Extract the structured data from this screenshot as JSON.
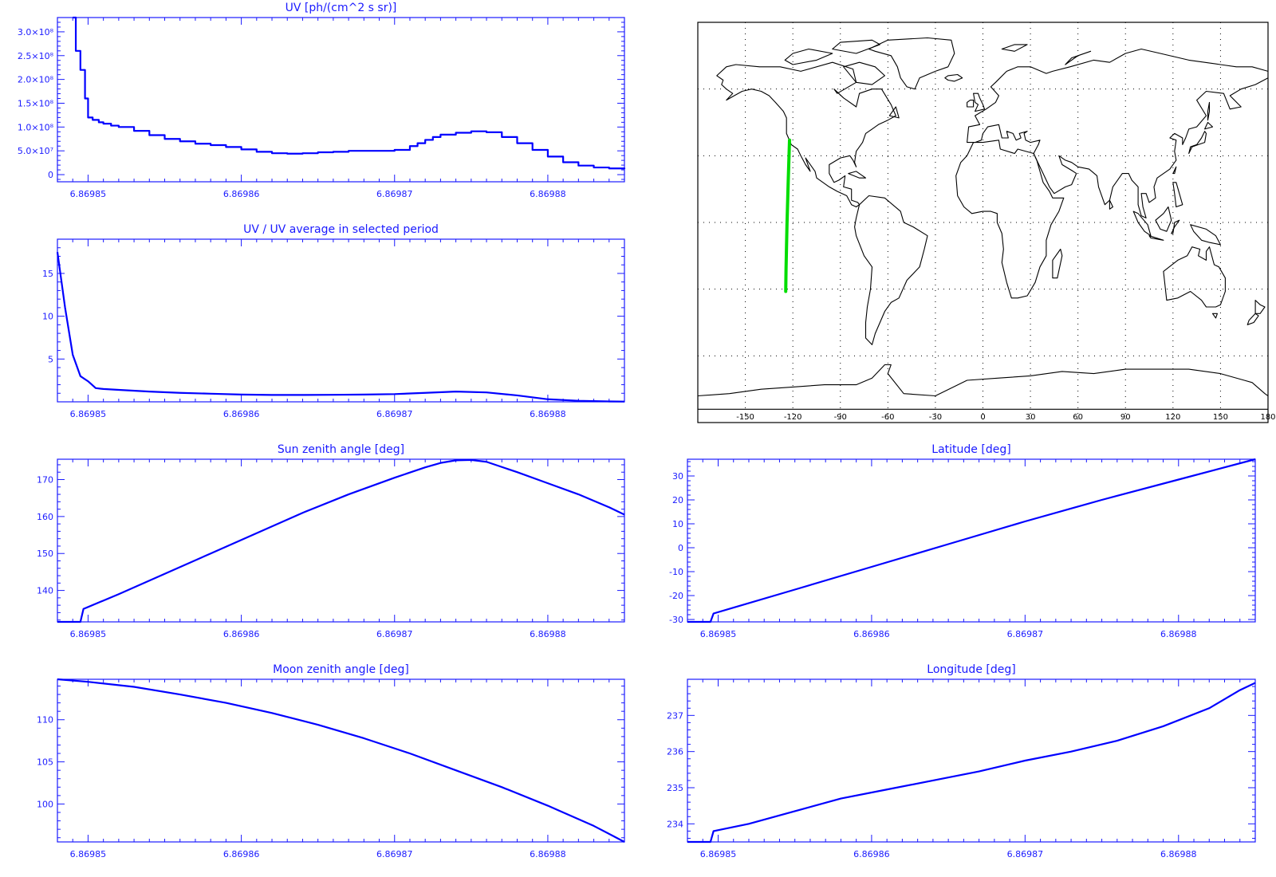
{
  "colors": {
    "axes": "#1a1aff",
    "line": "#0000ff",
    "track": "#00dd00",
    "coast": "#000000",
    "grid": "#000000"
  },
  "chart_data": [
    {
      "id": "uv",
      "type": "line",
      "title": "UV [ph/(cm^2 s sr)]",
      "xlim": [
        6.869848,
        6.869885
      ],
      "ylim": [
        -15000000.0,
        330000000.0
      ],
      "x_ticks": [
        6.86985,
        6.86986,
        6.86987,
        6.86988
      ],
      "x_tick_labels": [
        "6.86985",
        "6.86986",
        "6.86987",
        "6.86988"
      ],
      "y_ticks": [
        0,
        50000000.0,
        100000000.0,
        150000000.0,
        200000000.0,
        250000000.0,
        300000000.0
      ],
      "y_tick_labels": [
        "0",
        "5.0×10⁷",
        "1.0×10⁸",
        "1.5×10⁸",
        "2.0×10⁸",
        "2.5×10⁸",
        "3.0×10⁸"
      ],
      "step": true,
      "x": [
        6.869849,
        6.8698492,
        6.8698495,
        6.8698498,
        6.86985,
        6.8698503,
        6.8698507,
        6.869851,
        6.8698515,
        6.869852,
        6.869853,
        6.869854,
        6.869855,
        6.869856,
        6.869857,
        6.869858,
        6.869859,
        6.86986,
        6.869861,
        6.869862,
        6.869863,
        6.869864,
        6.869865,
        6.869866,
        6.869867,
        6.869868,
        6.869869,
        6.86987,
        6.869871,
        6.8698715,
        6.869872,
        6.8698725,
        6.869873,
        6.869874,
        6.869875,
        6.869876,
        6.869877,
        6.869878,
        6.869879,
        6.86988,
        6.869881,
        6.869882,
        6.869883,
        6.869884,
        6.869885
      ],
      "y": [
        330000000.0,
        260000000.0,
        220000000.0,
        160000000.0,
        120000000.0,
        115000000.0,
        110000000.0,
        107000000.0,
        103000000.0,
        100000000.0,
        92000000.0,
        83000000.0,
        75000000.0,
        70000000.0,
        65000000.0,
        62000000.0,
        58000000.0,
        53000000.0,
        48000000.0,
        45000000.0,
        44000000.0,
        45000000.0,
        47000000.0,
        48000000.0,
        50000000.0,
        50000000.0,
        50000000.0,
        52000000.0,
        60000000.0,
        66000000.0,
        73000000.0,
        79000000.0,
        84000000.0,
        88000000.0,
        91000000.0,
        89000000.0,
        79000000.0,
        66000000.0,
        52000000.0,
        38000000.0,
        26000000.0,
        19000000.0,
        15000000.0,
        13000000.0,
        12000000.0
      ]
    },
    {
      "id": "ratio",
      "type": "line",
      "title": "UV / UV average in selected period",
      "xlim": [
        6.869848,
        6.869885
      ],
      "ylim": [
        0,
        19
      ],
      "x_ticks": [
        6.86985,
        6.86986,
        6.86987,
        6.86988
      ],
      "x_tick_labels": [
        "6.86985",
        "6.86986",
        "6.86987",
        "6.86988"
      ],
      "y_ticks": [
        5,
        10,
        15
      ],
      "y_tick_labels": [
        "5",
        "10",
        "15"
      ],
      "x": [
        6.869848,
        6.8698485,
        6.869849,
        6.8698495,
        6.86985,
        6.8698505,
        6.869851,
        6.869852,
        6.869854,
        6.869856,
        6.869858,
        6.86986,
        6.869862,
        6.869864,
        6.869866,
        6.869868,
        6.86987,
        6.869872,
        6.869874,
        6.869876,
        6.869878,
        6.86988,
        6.869882,
        6.869884,
        6.869885
      ],
      "y": [
        17.5,
        11.0,
        5.5,
        3.0,
        2.4,
        1.6,
        1.5,
        1.4,
        1.2,
        1.05,
        0.95,
        0.85,
        0.8,
        0.8,
        0.82,
        0.85,
        0.9,
        1.05,
        1.2,
        1.1,
        0.75,
        0.3,
        0.12,
        0.05,
        0.03
      ]
    },
    {
      "id": "sza",
      "type": "line",
      "title": "Sun zenith angle [deg]",
      "xlim": [
        6.869848,
        6.869885
      ],
      "ylim": [
        131.5,
        175.5
      ],
      "x_ticks": [
        6.86985,
        6.86986,
        6.86987,
        6.86988
      ],
      "x_tick_labels": [
        "6.86985",
        "6.86986",
        "6.86987",
        "6.86988"
      ],
      "y_ticks": [
        140,
        150,
        160,
        170
      ],
      "y_tick_labels": [
        "140",
        "150",
        "160",
        "170"
      ],
      "x": [
        6.869848,
        6.8698495,
        6.8698497,
        6.869852,
        6.869855,
        6.869858,
        6.869861,
        6.869864,
        6.869867,
        6.86987,
        6.869872,
        6.869873,
        6.869874,
        6.869875,
        6.869876,
        6.869878,
        6.86988,
        6.869882,
        6.869884,
        6.869885
      ],
      "y": [
        131.5,
        131.5,
        135.0,
        139.0,
        144.5,
        150.0,
        155.5,
        161.0,
        166.0,
        170.5,
        173.3,
        174.5,
        175.2,
        175.3,
        174.8,
        172.0,
        169.0,
        166.0,
        162.5,
        160.5
      ]
    },
    {
      "id": "lat",
      "type": "line",
      "title": "Latitude [deg]",
      "xlim": [
        6.869848,
        6.869885
      ],
      "ylim": [
        -31,
        37
      ],
      "x_ticks": [
        6.86985,
        6.86986,
        6.86987,
        6.86988
      ],
      "x_tick_labels": [
        "6.86985",
        "6.86986",
        "6.86987",
        "6.86988"
      ],
      "y_ticks": [
        -30,
        -20,
        -10,
        0,
        10,
        20,
        30
      ],
      "y_tick_labels": [
        "-30",
        "-20",
        "-10",
        "0",
        "10",
        "20",
        "30"
      ],
      "x": [
        6.869848,
        6.8698495,
        6.8698497,
        6.869855,
        6.86986,
        6.869865,
        6.86987,
        6.869875,
        6.86988,
        6.869885
      ],
      "y": [
        -31,
        -31,
        -27.5,
        -17.5,
        -8.0,
        1.5,
        11.0,
        20.0,
        28.5,
        37.0
      ]
    },
    {
      "id": "mza",
      "type": "line",
      "title": "Moon zenith angle [deg]",
      "xlim": [
        6.869848,
        6.869885
      ],
      "ylim": [
        95.5,
        114.8
      ],
      "x_ticks": [
        6.86985,
        6.86986,
        6.86987,
        6.86988
      ],
      "x_tick_labels": [
        "6.86985",
        "6.86986",
        "6.86987",
        "6.86988"
      ],
      "y_ticks": [
        100,
        105,
        110
      ],
      "y_tick_labels": [
        "100",
        "105",
        "110"
      ],
      "x": [
        6.869848,
        6.86985,
        6.869853,
        6.869856,
        6.869859,
        6.869862,
        6.869865,
        6.869868,
        6.869871,
        6.869874,
        6.869877,
        6.86988,
        6.869883,
        6.869885
      ],
      "y": [
        114.8,
        114.5,
        113.9,
        113.0,
        112.0,
        110.8,
        109.4,
        107.8,
        106.0,
        104.0,
        102.0,
        99.8,
        97.4,
        95.5
      ]
    },
    {
      "id": "lon",
      "type": "line",
      "title": "Longitude [deg]",
      "xlim": [
        6.869848,
        6.869885
      ],
      "ylim": [
        233.5,
        238.0
      ],
      "x_ticks": [
        6.86985,
        6.86986,
        6.86987,
        6.86988
      ],
      "x_tick_labels": [
        "6.86985",
        "6.86986",
        "6.86987",
        "6.86988"
      ],
      "y_ticks": [
        234,
        235,
        236,
        237
      ],
      "y_tick_labels": [
        "234",
        "235",
        "236",
        "237"
      ],
      "x": [
        6.869848,
        6.8698495,
        6.8698497,
        6.869852,
        6.869855,
        6.869858,
        6.869861,
        6.869864,
        6.869867,
        6.86987,
        6.869873,
        6.869876,
        6.869879,
        6.869882,
        6.869884,
        6.869885
      ],
      "y": [
        233.5,
        233.5,
        233.8,
        234.0,
        234.35,
        234.7,
        234.95,
        235.2,
        235.45,
        235.75,
        236.0,
        236.3,
        236.7,
        237.2,
        237.7,
        237.9
      ]
    },
    {
      "id": "map",
      "type": "map",
      "xlim": [
        -180,
        180
      ],
      "ylim": [
        -90,
        90
      ],
      "x_ticks": [
        -150,
        -120,
        -90,
        -60,
        -30,
        0,
        30,
        60,
        90,
        120,
        150,
        180
      ],
      "x_tick_labels": [
        "-150",
        "-120",
        "-90",
        "-60",
        "-30",
        "0",
        "30",
        "60",
        "90",
        "120",
        "150",
        "180"
      ],
      "grid_lat": [
        -60,
        -30,
        0,
        30,
        60
      ],
      "track": {
        "lon": [
          -124.5,
          -124.3,
          -124.0,
          -123.7,
          -123.3,
          -122.9,
          -122.5,
          -122.1
        ],
        "lat": [
          -31.0,
          -21.0,
          -11.0,
          -1.0,
          9.0,
          19.0,
          28.0,
          37.0
        ]
      }
    }
  ]
}
